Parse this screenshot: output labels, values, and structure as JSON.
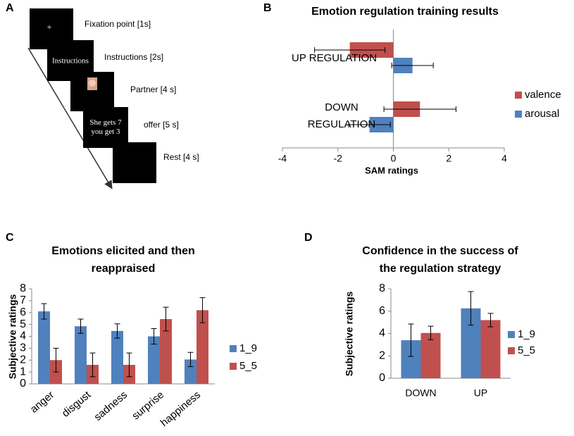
{
  "panel_labels": [
    "A",
    "B",
    "C",
    "D"
  ],
  "diagram": {
    "steps": [
      {
        "screen": "+",
        "label": "Fixation point [1s]"
      },
      {
        "screen": "Instructions",
        "label": "Instructions [2s]"
      },
      {
        "label": "Partner [4 s]"
      },
      {
        "screen": "She gets 7 you get 3",
        "label": "offer [5 s]"
      },
      {
        "label": "Rest [4 s]"
      }
    ]
  },
  "chart_data": [
    {
      "type": "bar",
      "orientation": "horizontal",
      "title": "Emotion regulation training results",
      "categories": [
        "UP REGULATION",
        "DOWN REGULATION"
      ],
      "series": [
        {
          "name": "valence",
          "color": "#c0504d",
          "values": [
            -1.57,
            0.96
          ],
          "errors": [
            1.27,
            1.3
          ]
        },
        {
          "name": "arousal",
          "color": "#4f81bd",
          "values": [
            0.69,
            -0.86
          ],
          "errors": [
            0.75,
            0.75
          ]
        }
      ],
      "xlabel": "SAM ratings",
      "xlim": [
        -4,
        4
      ],
      "xticks": [
        -4,
        -2,
        0,
        2,
        4
      ],
      "grid": false,
      "legend": "right"
    },
    {
      "type": "bar",
      "title": "Emotions elicited and then reappraised",
      "categories": [
        "anger",
        "disgust",
        "sadness",
        "surprise",
        "happiness"
      ],
      "series": [
        {
          "name": "1_9",
          "color": "#4f81bd",
          "values": [
            6.1,
            4.85,
            4.45,
            4.0,
            2.05
          ],
          "errors": [
            0.65,
            0.6,
            0.6,
            0.65,
            0.6
          ]
        },
        {
          "name": "5_5",
          "color": "#c0504d",
          "values": [
            2.0,
            1.6,
            1.6,
            5.45,
            6.2
          ],
          "errors": [
            1.0,
            1.0,
            1.0,
            1.0,
            1.05
          ]
        }
      ],
      "ylabel": "Subjective ratings",
      "ylim": [
        0,
        8
      ],
      "yticks": [
        0,
        1,
        2,
        3,
        4,
        5,
        6,
        7,
        8
      ],
      "grid": false,
      "legend": "right"
    },
    {
      "type": "bar",
      "title": "Confidence in the success of the regulation strategy",
      "categories": [
        "DOWN",
        "UP"
      ],
      "series": [
        {
          "name": "1_9",
          "color": "#4f81bd",
          "values": [
            3.4,
            6.25
          ],
          "errors": [
            1.45,
            1.5
          ]
        },
        {
          "name": "5_5",
          "color": "#c0504d",
          "values": [
            4.05,
            5.2
          ],
          "errors": [
            0.6,
            0.6
          ]
        }
      ],
      "ylabel": "Subjective ratings",
      "ylim": [
        0,
        8
      ],
      "yticks": [
        0,
        2,
        4,
        6,
        8
      ],
      "grid": false,
      "legend": "right"
    }
  ]
}
